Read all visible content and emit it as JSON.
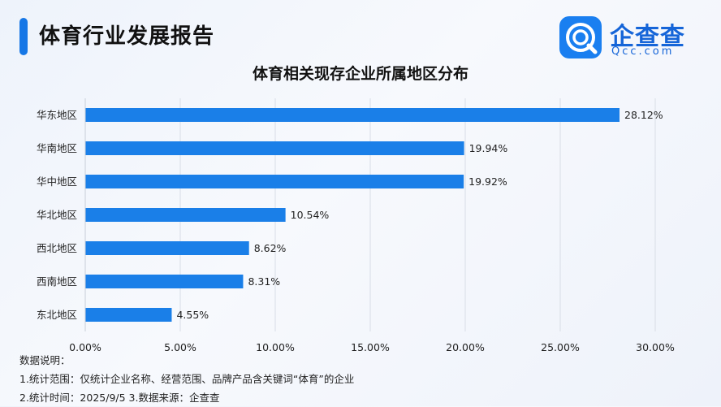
{
  "header": {
    "title": "体育行业发展报告"
  },
  "logo": {
    "name": "企查查",
    "domain": "Qcc.com"
  },
  "chart_data": {
    "type": "bar",
    "orientation": "horizontal",
    "title": "体育相关现存企业所属地区分布",
    "categories": [
      "华东地区",
      "华南地区",
      "华中地区",
      "华北地区",
      "西北地区",
      "西南地区",
      "东北地区"
    ],
    "values": [
      28.12,
      19.94,
      19.92,
      10.54,
      8.62,
      8.31,
      4.55
    ],
    "value_labels": [
      "28.12%",
      "19.94%",
      "19.92%",
      "10.54%",
      "8.62%",
      "8.31%",
      "4.55%"
    ],
    "x_ticks": [
      0,
      5,
      10,
      15,
      20,
      25,
      30
    ],
    "x_tick_labels": [
      "0.00%",
      "5.00%",
      "10.00%",
      "15.00%",
      "20.00%",
      "25.00%",
      "30.00%"
    ],
    "xlim": [
      0,
      30
    ],
    "grid": true,
    "bar_color": "#1a7fe8"
  },
  "notes": {
    "heading": "数据说明：",
    "line1": "1.统计范围：仅统计企业名称、经营范围、品牌产品含关键词“体育”的企业",
    "line2": "2.统计时间：2025/9/5  3.数据来源：企查查"
  }
}
